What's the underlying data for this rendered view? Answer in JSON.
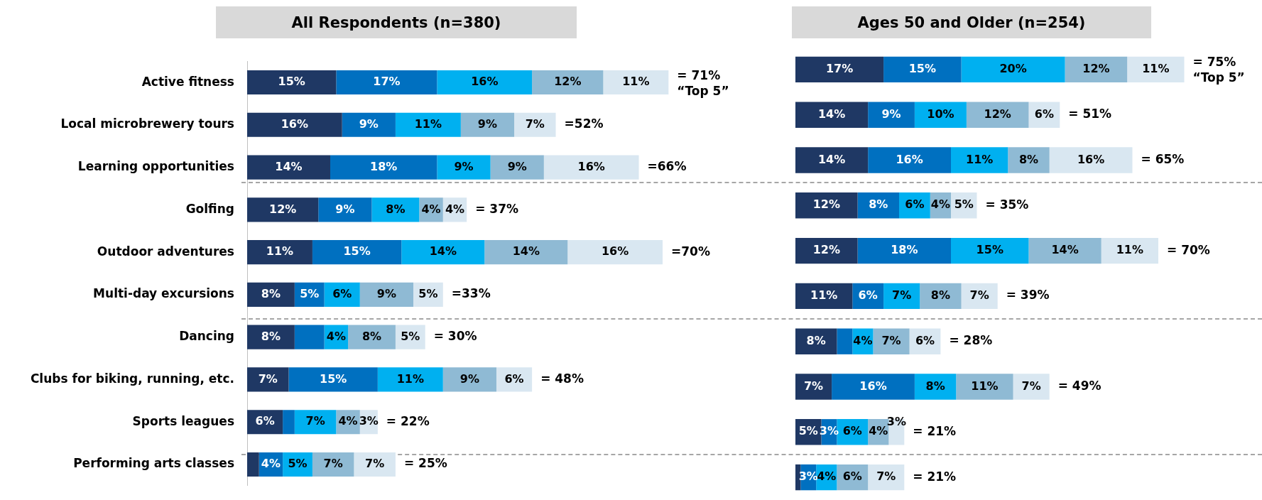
{
  "chart_data": [
    {
      "type": "bar",
      "orientation": "horizontal",
      "stacked": true,
      "title": "All Respondents (n=380)",
      "legend": false,
      "grid": false,
      "categories": [
        "Active fitness",
        "Local microbrewery tours",
        "Learning opportunities",
        "Golfing",
        "Outdoor adventures",
        "Multi-day excursions",
        "Dancing",
        "Clubs for biking, running, etc.",
        "Sports leagues",
        "Performing arts classes"
      ],
      "series": [
        {
          "color": "#1f3864",
          "values": [
            15,
            16,
            14,
            12,
            11,
            8,
            8,
            7,
            6,
            2
          ],
          "value_labels": [
            "15%",
            "16%",
            "14%",
            "12%",
            "11%",
            "8%",
            "8%",
            "7%",
            "6%",
            null
          ]
        },
        {
          "color": "#0070c0",
          "values": [
            17,
            9,
            18,
            9,
            15,
            5,
            5,
            15,
            2,
            4
          ],
          "value_labels": [
            "17%",
            "9%",
            "18%",
            "9%",
            "15%",
            "5%",
            null,
            "15%",
            null,
            "4%"
          ]
        },
        {
          "color": "#00b0f0",
          "values": [
            16,
            11,
            9,
            8,
            14,
            6,
            4,
            11,
            7,
            5
          ],
          "value_labels": [
            "16%",
            "11%",
            "9%",
            "8%",
            "14%",
            "6%",
            "4%",
            "11%",
            "7%",
            "5%"
          ]
        },
        {
          "color": "#8fbad4",
          "values": [
            12,
            9,
            9,
            4,
            14,
            9,
            8,
            9,
            4,
            7
          ],
          "value_labels": [
            "12%",
            "9%",
            "9%",
            "4%",
            "14%",
            "9%",
            "8%",
            "9%",
            "4%",
            "7%"
          ]
        },
        {
          "color": "#d9e7f1",
          "values": [
            11,
            7,
            16,
            4,
            16,
            5,
            5,
            6,
            3,
            7
          ],
          "value_labels": [
            "11%",
            "7%",
            "16%",
            "4%",
            "16%",
            "5%",
            "5%",
            "6%",
            "3%",
            "7%"
          ]
        }
      ],
      "totals": [
        "= 71%",
        "=52%",
        "=66%",
        "= 37%",
        "=70%",
        "=33%",
        "= 30%",
        "= 48%",
        "= 22%",
        "= 25%"
      ],
      "annotations": [
        {
          "text": "“Top 5”",
          "x": 71,
          "y": "Active fitness"
        }
      ]
    },
    {
      "type": "bar",
      "orientation": "horizontal",
      "stacked": true,
      "title": "Ages 50 and Older (n=254)",
      "legend": false,
      "grid": false,
      "tick_labels": false,
      "categories": [
        "Active fitness",
        "Local microbrewery tours",
        "Learning opportunities",
        "Golfing",
        "Outdoor adventures",
        "Multi-day excursions",
        "Dancing",
        "Clubs for biking, running, etc.",
        "Sports leagues",
        "Performing arts classes"
      ],
      "series": [
        {
          "color": "#1f3864",
          "values": [
            17,
            14,
            14,
            12,
            12,
            11,
            8,
            7,
            5,
            1
          ],
          "value_labels": [
            "17%",
            "14%",
            "14%",
            "12%",
            "12%",
            "11%",
            "8%",
            "7%",
            "5%",
            null
          ]
        },
        {
          "color": "#0070c0",
          "values": [
            15,
            9,
            16,
            8,
            18,
            6,
            3,
            16,
            3,
            3
          ],
          "value_labels": [
            "15%",
            "9%",
            "16%",
            "8%",
            "18%",
            "6%",
            null,
            "16%",
            "3%",
            "3%"
          ]
        },
        {
          "color": "#00b0f0",
          "values": [
            20,
            10,
            11,
            6,
            15,
            7,
            4,
            8,
            6,
            4
          ],
          "value_labels": [
            "20%",
            "10%",
            "11%",
            "6%",
            "15%",
            "7%",
            "4%",
            "8%",
            "6%",
            "4%"
          ]
        },
        {
          "color": "#8fbad4",
          "values": [
            12,
            12,
            8,
            4,
            14,
            8,
            7,
            11,
            4,
            6
          ],
          "value_labels": [
            "12%",
            "12%",
            "8%",
            "4%",
            "14%",
            "8%",
            "7%",
            "11%",
            "4%",
            "6%"
          ]
        },
        {
          "color": "#d9e7f1",
          "values": [
            11,
            6,
            16,
            5,
            11,
            7,
            6,
            7,
            3,
            7
          ],
          "value_labels": [
            "11%",
            "6%",
            "16%",
            "5%",
            "11%",
            "7%",
            "6%",
            "7%",
            "3%",
            "7%"
          ]
        }
      ],
      "totals": [
        "= 75%",
        "= 51%",
        "= 65%",
        "= 35%",
        "= 70%",
        "= 39%",
        "= 28%",
        "= 49%",
        "= 21%",
        "= 21%"
      ],
      "annotations": [
        {
          "text": "“Top 5”",
          "x": 75,
          "y": "Active fitness"
        }
      ]
    }
  ]
}
